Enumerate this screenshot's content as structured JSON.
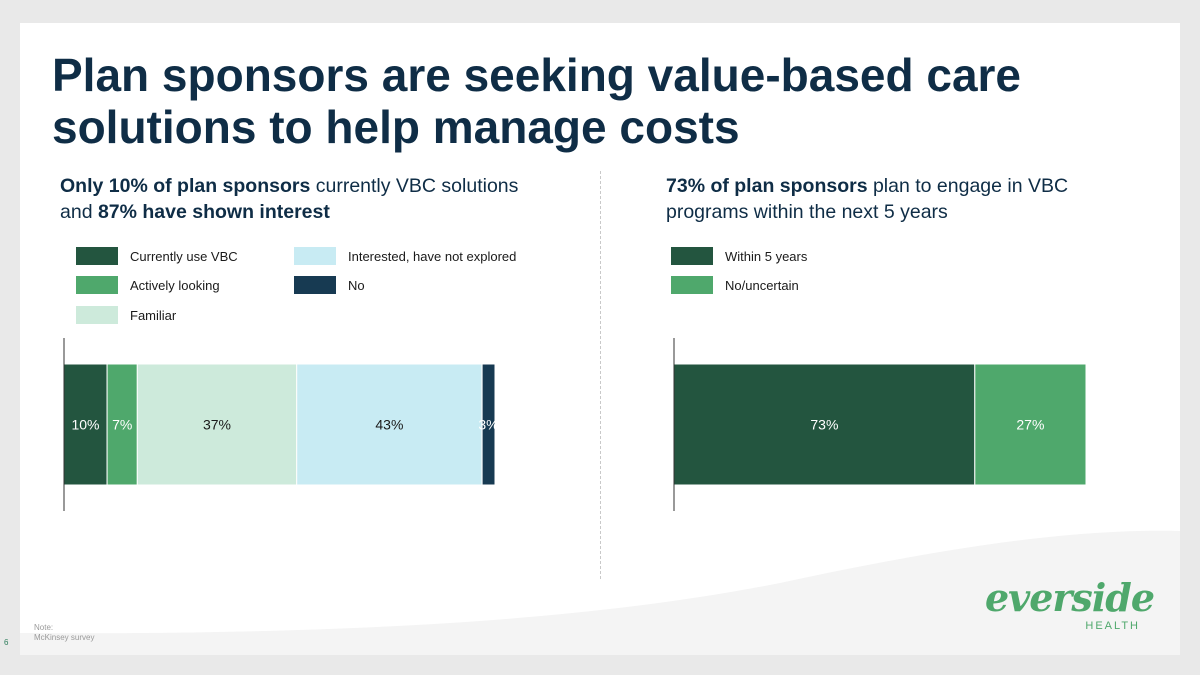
{
  "title": {
    "line1": "Plan sponsors are seeking value-based care",
    "line2": "solutions to help manage costs"
  },
  "left": {
    "subhead": {
      "p1_bold": "Only 10% of plan sponsors",
      "p1_rest": " currently VBC solutions",
      "p2_pre": "and ",
      "p2_bold": "87% have shown interest"
    },
    "legend": [
      {
        "label": "Currently use VBC",
        "color": "#23553f"
      },
      {
        "label": "Actively looking",
        "color": "#4fa86c"
      },
      {
        "label": "Familiar",
        "color": "#cdeadb"
      },
      {
        "label": "Interested, have not explored",
        "color": "#c8ebf3"
      },
      {
        "label": "No",
        "color": "#173a52"
      }
    ]
  },
  "right": {
    "subhead": {
      "p1_bold": "73% of plan sponsors",
      "p1_rest": " plan to engage in VBC",
      "p2": "programs within the next 5 years"
    },
    "legend": [
      {
        "label": "Within 5 years",
        "color": "#23553f"
      },
      {
        "label": "No/uncertain",
        "color": "#4fa86c"
      }
    ]
  },
  "chart_data": [
    {
      "type": "bar",
      "orientation": "horizontal-stacked-100",
      "series": [
        {
          "name": "Currently use VBC",
          "value": 10,
          "label": "10%",
          "color": "#23553f",
          "label_color": "#ffffff"
        },
        {
          "name": "Actively looking",
          "value": 7,
          "label": "7%",
          "color": "#4fa86c",
          "label_color": "#ffffff"
        },
        {
          "name": "Familiar",
          "value": 37,
          "label": "37%",
          "color": "#cdeadb",
          "label_color": "#1a1a1a"
        },
        {
          "name": "Interested, have not explored",
          "value": 43,
          "label": "43%",
          "color": "#c8ebf3",
          "label_color": "#1a1a1a"
        },
        {
          "name": "No",
          "value": 3,
          "label": "3%",
          "color": "#173a52",
          "label_color": "#ffffff"
        }
      ],
      "legend_position": "top"
    },
    {
      "type": "bar",
      "orientation": "horizontal-stacked-100",
      "series": [
        {
          "name": "Within 5 years",
          "value": 73,
          "label": "73%",
          "color": "#23553f",
          "label_color": "#ffffff"
        },
        {
          "name": "No/uncertain",
          "value": 27,
          "label": "27%",
          "color": "#4fa86c",
          "label_color": "#ffffff"
        }
      ],
      "legend_position": "top"
    }
  ],
  "note": {
    "heading": "Note:",
    "text": "McKinsey survey"
  },
  "page_number": "6",
  "logo": {
    "word": "everside",
    "sub": "HEALTH"
  }
}
